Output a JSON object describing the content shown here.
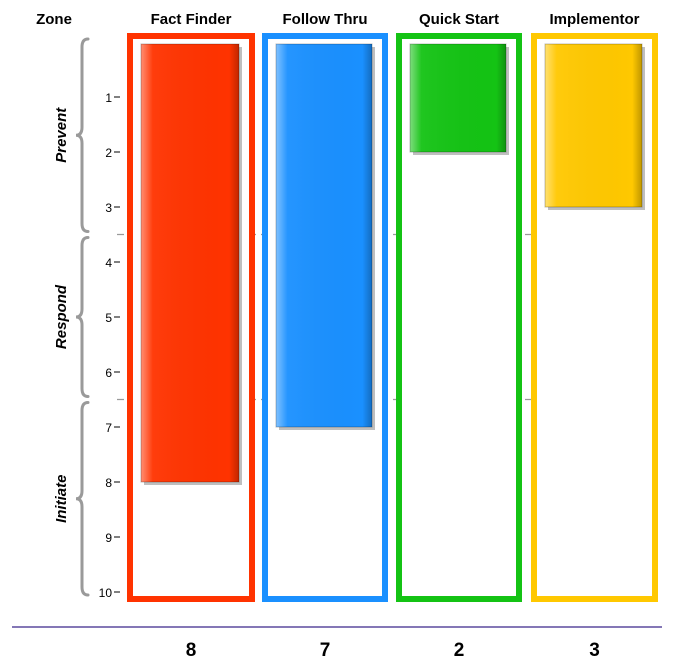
{
  "header": {
    "zone_label": "Zone"
  },
  "zones": [
    "Prevent",
    "Respond",
    "Initiate"
  ],
  "chart_data": {
    "type": "bar",
    "categories": [
      "Fact Finder",
      "Follow Thru",
      "Quick Start",
      "Implementor"
    ],
    "values": [
      8,
      7,
      2,
      3
    ],
    "ylim": [
      0,
      10
    ],
    "y_ticks": [
      "1",
      "2",
      "3",
      "4",
      "5",
      "6",
      "7",
      "8",
      "9",
      "10"
    ],
    "zone_boundaries": [
      3.5,
      6.5
    ],
    "score_labels": [
      "8",
      "7",
      "2",
      "3"
    ],
    "colors": [
      "#ff3300",
      "#1a90ff",
      "#14c314",
      "#ffc800"
    ],
    "frame_colors": [
      "#ff3300",
      "#1a90ff",
      "#14c314",
      "#ffc800"
    ],
    "grid": false
  }
}
